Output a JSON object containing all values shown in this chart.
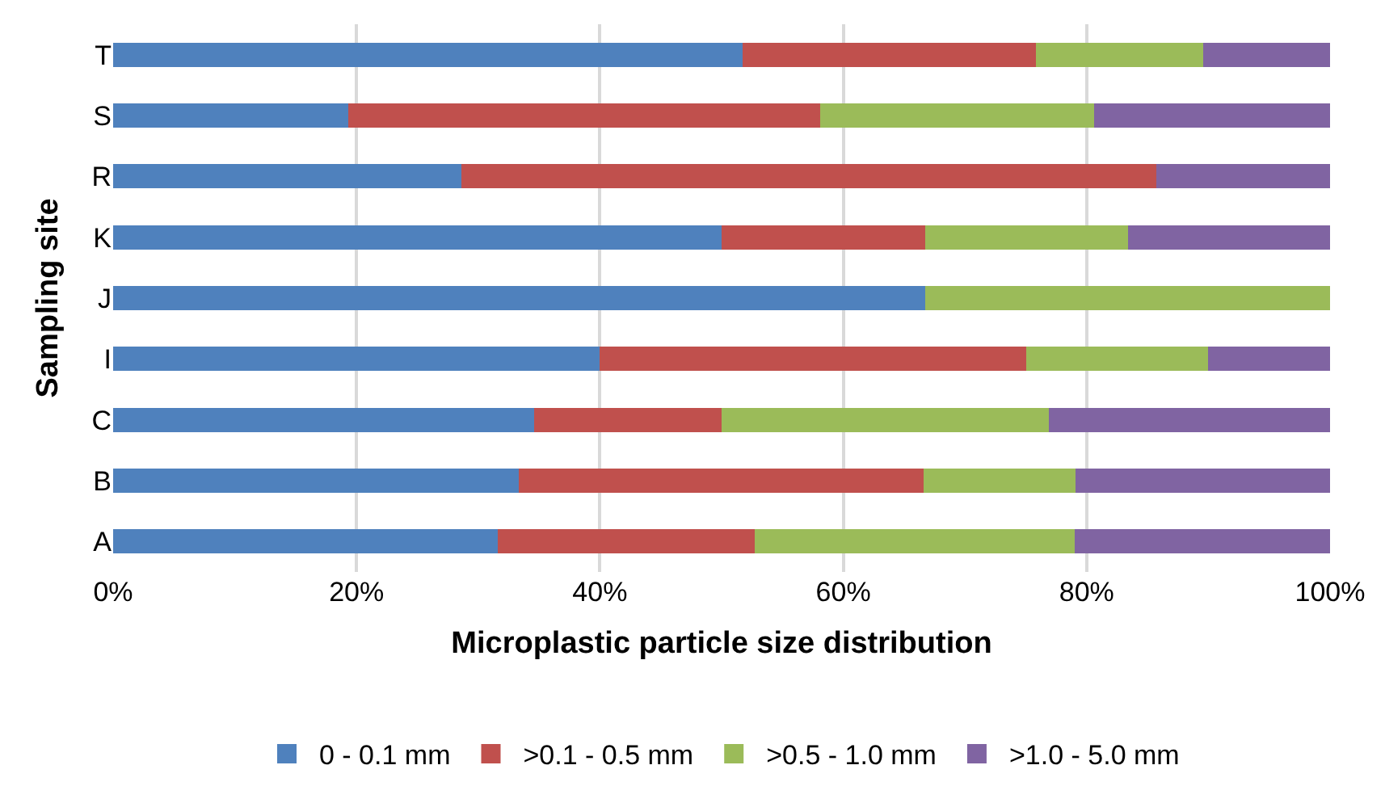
{
  "chart_data": {
    "type": "bar",
    "orientation": "horizontal",
    "stacked": true,
    "xlabel": "Microplastic particle size distribution",
    "ylabel": "Sampling site",
    "categories": [
      "T",
      "S",
      "R",
      "K",
      "J",
      "I",
      "C",
      "B",
      "A"
    ],
    "series": [
      {
        "name": "0 - 0.1 mm",
        "color": "#4f81bd",
        "values": [
          51.7,
          19.3,
          28.6,
          50.0,
          66.7,
          40.0,
          34.6,
          33.3,
          31.6
        ]
      },
      {
        "name": ">0.1 - 0.5 mm",
        "color": "#c0504d",
        "values": [
          24.1,
          38.8,
          57.1,
          16.7,
          0,
          35.0,
          15.4,
          33.3,
          21.1
        ]
      },
      {
        "name": ">0.5 - 1.0 mm",
        "color": "#9bbb59",
        "values": [
          13.8,
          22.5,
          0,
          16.7,
          33.3,
          15.0,
          26.9,
          12.5,
          26.3
        ]
      },
      {
        "name": ">1.0 - 5.0 mm",
        "color": "#8064a2",
        "values": [
          10.4,
          19.4,
          14.3,
          16.6,
          0,
          10.0,
          23.1,
          20.9,
          21.0
        ]
      }
    ],
    "xlim": [
      0,
      100
    ],
    "xticks": [
      {
        "value": 0,
        "label": "0%"
      },
      {
        "value": 20,
        "label": "20%"
      },
      {
        "value": 40,
        "label": "40%"
      },
      {
        "value": 60,
        "label": "60%"
      },
      {
        "value": 80,
        "label": "80%"
      },
      {
        "value": 100,
        "label": "100%"
      }
    ],
    "grid": "x",
    "legend": "bottom"
  }
}
